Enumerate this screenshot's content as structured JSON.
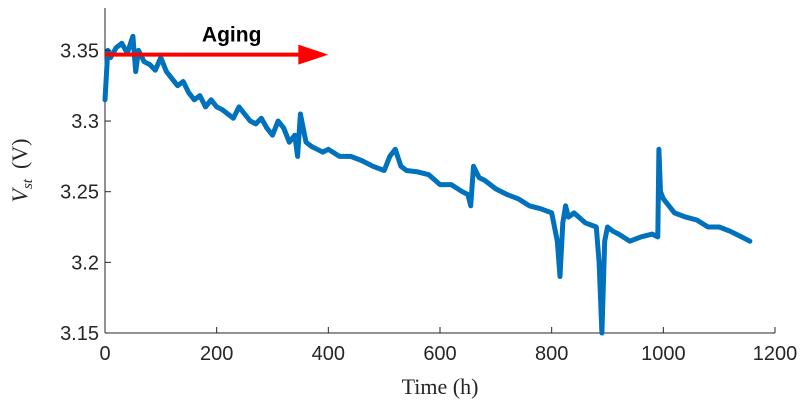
{
  "chart_data": {
    "type": "line",
    "title": "",
    "xlabel": "Time (h)",
    "ylabel": {
      "main": "V",
      "sub": "st",
      "unit": "(V)"
    },
    "xlim": [
      0,
      1200
    ],
    "ylim": [
      3.15,
      3.38
    ],
    "x_ticks": [
      0,
      200,
      400,
      600,
      800,
      1000,
      1200
    ],
    "y_ticks": [
      3.15,
      3.2,
      3.25,
      3.3,
      3.35
    ],
    "y_tick_labels": [
      "3.15",
      "3.2",
      "3.25",
      "3.3",
      "3.35"
    ],
    "grid": false,
    "legend": "none",
    "series": [
      {
        "color": "#0072BD",
        "x": [
          0,
          5,
          10,
          20,
          30,
          40,
          50,
          55,
          60,
          70,
          80,
          90,
          100,
          110,
          120,
          130,
          140,
          150,
          160,
          170,
          180,
          190,
          200,
          210,
          220,
          230,
          240,
          250,
          260,
          270,
          280,
          290,
          300,
          310,
          320,
          330,
          340,
          345,
          350,
          360,
          370,
          380,
          390,
          400,
          420,
          440,
          460,
          480,
          500,
          510,
          520,
          530,
          540,
          560,
          580,
          600,
          620,
          640,
          650,
          655,
          660,
          670,
          680,
          700,
          720,
          740,
          760,
          780,
          800,
          810,
          815,
          820,
          825,
          830,
          840,
          860,
          880,
          885,
          890,
          895,
          900,
          910,
          920,
          940,
          960,
          980,
          990,
          992,
          995,
          1000,
          1010,
          1020,
          1040,
          1060,
          1080,
          1100,
          1120,
          1140,
          1155
        ],
        "y": [
          3.315,
          3.35,
          3.345,
          3.352,
          3.355,
          3.348,
          3.36,
          3.335,
          3.35,
          3.342,
          3.34,
          3.336,
          3.345,
          3.335,
          3.33,
          3.325,
          3.328,
          3.32,
          3.315,
          3.318,
          3.31,
          3.315,
          3.31,
          3.308,
          3.305,
          3.302,
          3.31,
          3.305,
          3.3,
          3.298,
          3.302,
          3.295,
          3.29,
          3.3,
          3.295,
          3.285,
          3.29,
          3.275,
          3.305,
          3.285,
          3.282,
          3.28,
          3.278,
          3.28,
          3.275,
          3.275,
          3.272,
          3.268,
          3.265,
          3.275,
          3.28,
          3.268,
          3.265,
          3.264,
          3.262,
          3.255,
          3.255,
          3.25,
          3.248,
          3.24,
          3.268,
          3.26,
          3.258,
          3.252,
          3.248,
          3.245,
          3.24,
          3.238,
          3.235,
          3.215,
          3.19,
          3.228,
          3.24,
          3.232,
          3.235,
          3.228,
          3.225,
          3.2,
          3.15,
          3.215,
          3.225,
          3.222,
          3.22,
          3.215,
          3.218,
          3.22,
          3.218,
          3.28,
          3.25,
          3.245,
          3.24,
          3.235,
          3.232,
          3.23,
          3.225,
          3.225,
          3.222,
          3.218,
          3.215
        ]
      }
    ],
    "annotation": {
      "text": "Aging",
      "arrow_from": [
        0,
        3.347
      ],
      "arrow_to": [
        400,
        3.347
      ],
      "color": "#FF0000"
    }
  }
}
